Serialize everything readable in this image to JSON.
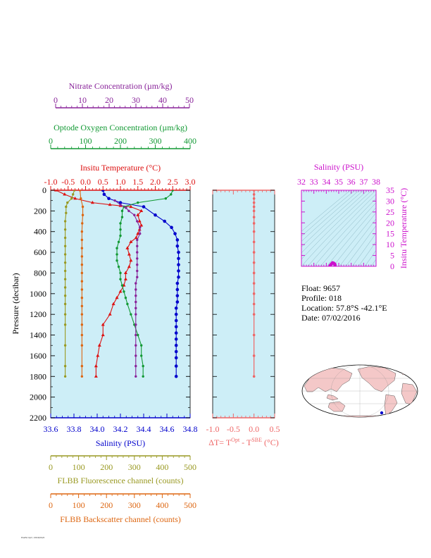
{
  "colors": {
    "temperature": "#dd1111",
    "salinity": "#0000cc",
    "oxygen": "#119933",
    "nitrate": "#882299",
    "fluorescence": "#999922",
    "backscatter": "#dd6611",
    "delta_t": "#ee6666",
    "ts_axis": "#cc11cc",
    "plot_bg": "#cdeef7",
    "land": "#f4c8c8"
  },
  "axes": {
    "nitrate": {
      "title": "Nitrate Concentration (µm/kg)",
      "ticks": [
        "0",
        "10",
        "20",
        "30",
        "40",
        "50"
      ]
    },
    "oxygen": {
      "title": "Optode Oxygen Concentration (µm/kg)",
      "ticks": [
        "0",
        "100",
        "200",
        "300",
        "400"
      ]
    },
    "temperature": {
      "title": "Insitu Temperature (°C)",
      "ticks": [
        "-1.0",
        "-0.5",
        "0.0",
        "0.5",
        "1.0",
        "1.5",
        "2.0",
        "2.5",
        "3.0"
      ]
    },
    "pressure": {
      "title": "Pressure (decibar)",
      "ticks": [
        "0",
        "200",
        "400",
        "600",
        "800",
        "1000",
        "1200",
        "1400",
        "1600",
        "1800",
        "2000",
        "2200"
      ]
    },
    "salinity": {
      "title": "Salinity (PSU)",
      "ticks": [
        "33.6",
        "33.8",
        "34.0",
        "34.2",
        "34.4",
        "34.6",
        "34.8"
      ]
    },
    "fluorescence": {
      "title": "FLBB Fluorescence channel (counts)",
      "ticks": [
        "0",
        "100",
        "200",
        "300",
        "400",
        "500"
      ]
    },
    "backscatter": {
      "title": "FLBB Backscatter channel (counts)",
      "ticks": [
        "0",
        "100",
        "200",
        "300",
        "400",
        "500"
      ]
    },
    "delta_t": {
      "title_prefix": "ΔT= T",
      "title_sup1": "Opt",
      "title_mid": " - T",
      "title_sup2": "SBE",
      "title_suffix": " (°C)",
      "ticks": [
        "-1.0",
        "-0.5",
        "0.0",
        "0.5"
      ]
    },
    "ts_salinity": {
      "title": "Salinity (PSU)",
      "ticks": [
        "32",
        "33",
        "34",
        "35",
        "36",
        "37",
        "38"
      ]
    },
    "ts_temperature": {
      "title": "Insitu Temperature (°C)",
      "ticks": [
        "0",
        "5",
        "10",
        "15",
        "20",
        "25",
        "30",
        "35"
      ]
    }
  },
  "info": {
    "float": "Float:  9657",
    "profile": "Profile:  018",
    "location": "Location:  57.8°S  -42.1°E",
    "date": "Date:  07/02/2016"
  },
  "footer": "PostScript / 2016/02/0",
  "chart_data": [
    {
      "type": "line",
      "y_axis": "pressure (decibar)",
      "ylim": [
        2200,
        0
      ],
      "series": [
        {
          "name": "Insitu Temperature (°C)",
          "xlim": [
            -1.0,
            3.0
          ],
          "x": [
            -0.85,
            -0.6,
            -0.3,
            0.2,
            0.7,
            1.0,
            1.3,
            1.6,
            1.5,
            1.55,
            1.6,
            1.55,
            1.5,
            1.45,
            1.3,
            1.2,
            1.25,
            1.3,
            1.25,
            1.15,
            1.15,
            1.1,
            1.0,
            0.9,
            0.8,
            0.7,
            0.5,
            0.5,
            0.4,
            0.35,
            0.3,
            0.3
          ],
          "y": [
            0,
            40,
            80,
            120,
            140,
            150,
            160,
            200,
            240,
            300,
            340,
            380,
            420,
            460,
            500,
            560,
            620,
            680,
            740,
            800,
            860,
            920,
            980,
            1040,
            1100,
            1200,
            1300,
            1400,
            1500,
            1600,
            1700,
            1800
          ]
        },
        {
          "name": "Salinity (PSU)",
          "xlim": [
            33.6,
            34.8
          ],
          "x": [
            34.05,
            34.06,
            34.1,
            34.2,
            34.4,
            34.5,
            34.58,
            34.64,
            34.67,
            34.69,
            34.69,
            34.7,
            34.7,
            34.7,
            34.7,
            34.7,
            34.69,
            34.69,
            34.69,
            34.69,
            34.68,
            34.68,
            34.68,
            34.68,
            34.68,
            34.68,
            34.68,
            34.68,
            34.68,
            34.68,
            34.68
          ],
          "y": [
            0,
            40,
            80,
            120,
            160,
            240,
            300,
            360,
            420,
            480,
            540,
            600,
            660,
            720,
            780,
            840,
            900,
            960,
            1020,
            1080,
            1140,
            1200,
            1260,
            1320,
            1380,
            1440,
            1500,
            1560,
            1620,
            1700,
            1800
          ]
        },
        {
          "name": "Optode Oxygen Concentration (µm/kg)",
          "xlim": [
            0,
            400
          ],
          "x": [
            350,
            345,
            330,
            250,
            210,
            205,
            205,
            200,
            200,
            200,
            195,
            190,
            190,
            190,
            195,
            200,
            200,
            205,
            210,
            215,
            220,
            230,
            240,
            250,
            260,
            260,
            265,
            265
          ],
          "y": [
            0,
            40,
            80,
            120,
            160,
            200,
            260,
            320,
            380,
            440,
            500,
            560,
            620,
            680,
            740,
            800,
            860,
            920,
            980,
            1040,
            1100,
            1200,
            1300,
            1400,
            1500,
            1600,
            1700,
            1800
          ]
        },
        {
          "name": "Nitrate Concentration (µm/kg)",
          "xlim": [
            0,
            50
          ],
          "x": [
            23,
            25,
            27,
            28,
            30,
            31,
            32,
            32,
            31,
            31,
            31,
            31,
            31,
            31,
            31,
            30.5,
            30.5,
            30.5,
            30.5,
            30.5,
            30.5,
            30.5,
            30.5,
            30.5,
            30.5,
            30.5,
            30.5
          ],
          "y": [
            100,
            140,
            170,
            200,
            240,
            300,
            360,
            420,
            480,
            540,
            600,
            660,
            720,
            780,
            840,
            900,
            960,
            1020,
            1080,
            1140,
            1200,
            1300,
            1400,
            1500,
            1600,
            1700,
            1800
          ]
        },
        {
          "name": "FLBB Fluorescence channel (counts)",
          "xlim": [
            0,
            500
          ],
          "x": [
            85,
            80,
            75,
            60,
            55,
            55,
            52,
            52,
            52,
            52,
            52,
            52,
            52,
            52,
            52,
            52,
            52,
            52,
            52,
            52,
            52,
            52
          ],
          "y": [
            0,
            40,
            80,
            120,
            160,
            220,
            300,
            380,
            460,
            540,
            620,
            700,
            780,
            860,
            940,
            1020,
            1100,
            1200,
            1300,
            1500,
            1700,
            1800
          ]
        },
        {
          "name": "FLBB Backscatter channel (counts)",
          "xlim": [
            0,
            500
          ],
          "x": [
            105,
            108,
            115,
            115,
            113,
            112,
            112,
            112,
            112,
            112,
            112,
            112,
            112,
            112,
            112,
            112,
            112,
            112,
            112,
            112,
            112
          ],
          "y": [
            0,
            80,
            160,
            240,
            320,
            400,
            480,
            560,
            640,
            720,
            800,
            880,
            960,
            1040,
            1120,
            1200,
            1300,
            1400,
            1500,
            1700,
            1800
          ]
        }
      ]
    },
    {
      "type": "line",
      "name": "ΔT profile",
      "xlim": [
        -1.0,
        0.5
      ],
      "ylim": [
        2200,
        0
      ],
      "x": [
        0.0,
        0.0,
        0.0,
        0.0,
        0.0,
        0.0,
        0.0,
        0.0,
        0.0,
        0.0,
        0.0,
        0.0,
        0.0,
        0.0,
        0.0,
        0.0,
        0.0,
        0.0,
        0.0,
        0.0
      ],
      "y": [
        0,
        40,
        80,
        120,
        160,
        200,
        260,
        320,
        400,
        500,
        600,
        700,
        800,
        900,
        1000,
        1100,
        1200,
        1400,
        1600,
        1800
      ]
    },
    {
      "type": "scatter",
      "name": "T-S diagram",
      "xlim": [
        32,
        38
      ],
      "ylim": [
        0,
        35
      ],
      "x": [
        34.3,
        34.4,
        34.5,
        34.6,
        34.68,
        34.7
      ],
      "y": [
        0.3,
        1.0,
        1.6,
        1.4,
        1.0,
        0.5
      ]
    }
  ]
}
